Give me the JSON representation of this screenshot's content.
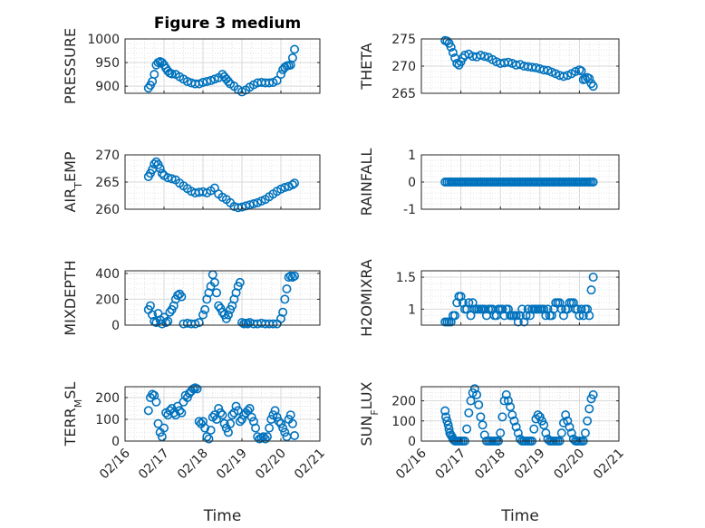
{
  "figure": {
    "title": "Figure 3 medium"
  },
  "chart_data": [
    {
      "type": "scatter",
      "ylabel": "PRESSURE",
      "ylim": [
        885,
        1000
      ],
      "yticks": [
        900,
        950,
        1000
      ],
      "xlabel": "",
      "xticklabels": [],
      "x": [
        16.6,
        16.65,
        16.7,
        16.75,
        16.8,
        16.85,
        16.9,
        16.95,
        17.0,
        17.05,
        17.1,
        17.15,
        17.2,
        17.3,
        17.4,
        17.5,
        17.6,
        17.7,
        17.8,
        17.9,
        18.0,
        18.1,
        18.2,
        18.3,
        18.4,
        18.5,
        18.55,
        18.6,
        18.65,
        18.7,
        18.8,
        18.9,
        19.0,
        19.1,
        19.2,
        19.3,
        19.4,
        19.5,
        19.6,
        19.7,
        19.8,
        19.9,
        20.0,
        20.05,
        20.1,
        20.15,
        20.2,
        20.25,
        20.3,
        20.35
      ],
      "y": [
        896,
        902,
        910,
        925,
        945,
        950,
        952,
        950,
        945,
        938,
        932,
        928,
        926,
        925,
        920,
        915,
        910,
        907,
        905,
        905,
        908,
        910,
        912,
        915,
        918,
        925,
        920,
        915,
        910,
        905,
        900,
        893,
        888,
        892,
        898,
        903,
        907,
        908,
        907,
        907,
        908,
        912,
        925,
        935,
        940,
        943,
        944,
        945,
        960,
        978
      ]
    },
    {
      "type": "scatter",
      "ylabel": "THETA",
      "ylim": [
        265,
        275
      ],
      "yticks": [
        265,
        270,
        275
      ],
      "xlabel": "",
      "xticklabels": [],
      "x": [
        16.6,
        16.65,
        16.7,
        16.75,
        16.8,
        16.85,
        16.9,
        16.95,
        17.0,
        17.05,
        17.1,
        17.2,
        17.3,
        17.4,
        17.5,
        17.6,
        17.7,
        17.8,
        17.9,
        18.0,
        18.1,
        18.2,
        18.3,
        18.4,
        18.5,
        18.6,
        18.7,
        18.8,
        18.9,
        19.0,
        19.1,
        19.2,
        19.3,
        19.4,
        19.5,
        19.6,
        19.7,
        19.8,
        19.9,
        20.0,
        20.05,
        20.1,
        20.15,
        20.2,
        20.25,
        20.3,
        20.35
      ],
      "y": [
        274.7,
        274.6,
        274.2,
        273.5,
        272.5,
        271.5,
        270.5,
        270.2,
        270.8,
        271.5,
        272,
        272.2,
        271.8,
        271.7,
        272,
        271.8,
        271.6,
        271.2,
        270.8,
        270.5,
        270.6,
        270.7,
        270.5,
        270.2,
        270.3,
        270,
        269.9,
        269.8,
        269.7,
        269.5,
        269.3,
        269.2,
        268.9,
        268.6,
        268.3,
        268.1,
        268.3,
        268.6,
        269,
        269.3,
        269.1,
        267.5,
        267.6,
        267.9,
        267.7,
        266.8,
        266.3
      ]
    },
    {
      "type": "scatter",
      "ylabel": "AIR_TEMP",
      "ylim": [
        260,
        270
      ],
      "yticks": [
        260,
        265,
        270
      ],
      "xlabel": "",
      "xticklabels": [],
      "x": [
        16.6,
        16.65,
        16.7,
        16.75,
        16.8,
        16.85,
        16.9,
        16.95,
        17.0,
        17.1,
        17.2,
        17.3,
        17.4,
        17.5,
        17.6,
        17.7,
        17.8,
        17.9,
        18.0,
        18.1,
        18.2,
        18.3,
        18.4,
        18.5,
        18.6,
        18.7,
        18.8,
        18.9,
        19.0,
        19.1,
        19.2,
        19.3,
        19.4,
        19.5,
        19.6,
        19.7,
        19.8,
        19.9,
        20.0,
        20.1,
        20.2,
        20.3,
        20.35
      ],
      "y": [
        266,
        266.6,
        267.3,
        268.3,
        268.7,
        268.2,
        267.5,
        266.6,
        266.2,
        265.8,
        265.6,
        265.4,
        264.8,
        264.3,
        263.8,
        263.3,
        263,
        263.1,
        263.2,
        263,
        263.4,
        263.9,
        262.8,
        262.2,
        261.8,
        261.2,
        260.5,
        260.3,
        260.4,
        260.6,
        260.8,
        261,
        261.2,
        261.5,
        261.8,
        262.3,
        262.8,
        263.3,
        263.7,
        264,
        264.2,
        264.5,
        264.8
      ]
    },
    {
      "type": "scatter",
      "ylabel": "RAINFALL",
      "ylim": [
        -1,
        1
      ],
      "yticks": [
        -1,
        0,
        1
      ],
      "xlabel": "",
      "xticklabels": [],
      "x": [
        16.6,
        16.65,
        16.7,
        16.75,
        16.8,
        16.85,
        16.9,
        16.95,
        17.0,
        17.05,
        17.1,
        17.15,
        17.2,
        17.25,
        17.3,
        17.35,
        17.4,
        17.45,
        17.5,
        17.55,
        17.6,
        17.65,
        17.7,
        17.75,
        17.8,
        17.85,
        17.9,
        17.95,
        18.0,
        18.05,
        18.1,
        18.15,
        18.2,
        18.25,
        18.3,
        18.35,
        18.4,
        18.45,
        18.5,
        18.55,
        18.6,
        18.65,
        18.7,
        18.75,
        18.8,
        18.85,
        18.9,
        18.95,
        19.0,
        19.05,
        19.1,
        19.15,
        19.2,
        19.25,
        19.3,
        19.35,
        19.4,
        19.45,
        19.5,
        19.55,
        19.6,
        19.65,
        19.7,
        19.75,
        19.8,
        19.85,
        19.9,
        19.95,
        20.0,
        20.05,
        20.1,
        20.15,
        20.2,
        20.25,
        20.3,
        20.35
      ],
      "y": [
        0,
        0,
        0,
        0,
        0,
        0,
        0,
        0,
        0,
        0,
        0,
        0,
        0,
        0,
        0,
        0,
        0,
        0,
        0,
        0,
        0,
        0,
        0,
        0,
        0,
        0,
        0,
        0,
        0,
        0,
        0,
        0,
        0,
        0,
        0,
        0,
        0,
        0,
        0,
        0,
        0,
        0,
        0,
        0,
        0,
        0,
        0,
        0,
        0,
        0,
        0,
        0,
        0,
        0,
        0,
        0,
        0,
        0,
        0,
        0,
        0,
        0,
        0,
        0,
        0,
        0,
        0,
        0,
        0,
        0,
        0,
        0,
        0,
        0,
        0,
        0
      ]
    },
    {
      "type": "scatter",
      "ylabel": "MIXDEPTH",
      "ylim": [
        0,
        420
      ],
      "yticks": [
        0,
        200,
        400
      ],
      "xlabel": "",
      "xticklabels": [],
      "x": [
        16.6,
        16.65,
        16.7,
        16.75,
        16.8,
        16.85,
        16.9,
        16.95,
        17.0,
        17.05,
        17.1,
        17.15,
        17.2,
        17.25,
        17.3,
        17.35,
        17.4,
        17.45,
        17.5,
        17.6,
        17.7,
        17.8,
        17.9,
        18.0,
        18.05,
        18.1,
        18.15,
        18.2,
        18.25,
        18.3,
        18.35,
        18.4,
        18.45,
        18.5,
        18.55,
        18.6,
        18.65,
        18.7,
        18.75,
        18.8,
        18.85,
        18.9,
        18.95,
        19.0,
        19.05,
        19.1,
        19.15,
        19.2,
        19.3,
        19.4,
        19.5,
        19.6,
        19.7,
        19.8,
        19.9,
        20.0,
        20.05,
        20.1,
        20.15,
        20.2,
        20.25,
        20.3,
        20.35
      ],
      "y": [
        120,
        150,
        80,
        30,
        20,
        90,
        40,
        10,
        60,
        20,
        30,
        100,
        120,
        150,
        200,
        230,
        240,
        220,
        10,
        15,
        10,
        10,
        20,
        80,
        120,
        200,
        250,
        300,
        390,
        330,
        250,
        150,
        130,
        100,
        80,
        50,
        80,
        120,
        150,
        200,
        250,
        300,
        330,
        20,
        10,
        15,
        10,
        20,
        10,
        10,
        15,
        10,
        10,
        10,
        10,
        50,
        100,
        200,
        280,
        370,
        380,
        370,
        380
      ]
    },
    {
      "type": "scatter",
      "ylabel": "H2OMIXRA",
      "ylim": [
        0.75,
        1.6
      ],
      "yticks": [
        1,
        1.5
      ],
      "xlabel": "",
      "xticklabels": [],
      "x": [
        16.6,
        16.65,
        16.7,
        16.75,
        16.8,
        16.85,
        16.9,
        16.95,
        17.0,
        17.05,
        17.1,
        17.15,
        17.2,
        17.25,
        17.3,
        17.35,
        17.4,
        17.45,
        17.5,
        17.55,
        17.6,
        17.65,
        17.7,
        17.75,
        17.8,
        17.85,
        17.9,
        17.95,
        18.0,
        18.05,
        18.1,
        18.15,
        18.2,
        18.25,
        18.3,
        18.35,
        18.4,
        18.45,
        18.5,
        18.55,
        18.6,
        18.65,
        18.7,
        18.75,
        18.8,
        18.85,
        18.9,
        18.95,
        19.0,
        19.05,
        19.1,
        19.15,
        19.2,
        19.25,
        19.3,
        19.35,
        19.4,
        19.45,
        19.5,
        19.55,
        19.6,
        19.65,
        19.7,
        19.75,
        19.8,
        19.85,
        19.9,
        19.95,
        20.0,
        20.05,
        20.1,
        20.15,
        20.2,
        20.25,
        20.3,
        20.35
      ],
      "y": [
        0.8,
        0.8,
        0.8,
        0.8,
        0.9,
        0.9,
        1.1,
        1.2,
        1.2,
        1.1,
        1.0,
        1.0,
        1.1,
        0.9,
        1.1,
        1.0,
        1.0,
        1.0,
        1.0,
        1.0,
        1.0,
        0.9,
        1.0,
        1.0,
        1.0,
        0.9,
        0.9,
        1.0,
        1.0,
        1.0,
        0.9,
        1.0,
        1.0,
        0.9,
        0.9,
        0.9,
        0.9,
        0.8,
        0.9,
        1.0,
        0.8,
        0.9,
        1.0,
        0.9,
        1.0,
        1.0,
        1.0,
        1.0,
        1.0,
        1.0,
        1.0,
        0.9,
        1.0,
        0.9,
        0.9,
        1.0,
        1.1,
        1.1,
        1.1,
        1.0,
        0.9,
        1.0,
        1.0,
        1.1,
        1.1,
        1.1,
        1.0,
        1.0,
        0.9,
        1.0,
        0.9,
        1.0,
        1.0,
        0.9,
        1.3,
        1.5
      ]
    },
    {
      "type": "scatter",
      "ylabel": "TERR_MSL",
      "ylim": [
        0,
        250
      ],
      "yticks": [
        0,
        100,
        200
      ],
      "xlabel": "Time",
      "xticklabels": [
        "02/16",
        "02/17",
        "02/18",
        "02/19",
        "02/20",
        "02/21"
      ],
      "x": [
        16.6,
        16.65,
        16.7,
        16.75,
        16.8,
        16.85,
        16.9,
        16.95,
        17.0,
        17.05,
        17.1,
        17.15,
        17.2,
        17.25,
        17.3,
        17.35,
        17.4,
        17.45,
        17.5,
        17.55,
        17.6,
        17.65,
        17.7,
        17.75,
        17.8,
        17.85,
        17.9,
        17.95,
        18.0,
        18.05,
        18.1,
        18.15,
        18.2,
        18.25,
        18.3,
        18.35,
        18.4,
        18.45,
        18.5,
        18.55,
        18.6,
        18.65,
        18.7,
        18.75,
        18.8,
        18.85,
        18.9,
        18.95,
        19.0,
        19.05,
        19.1,
        19.15,
        19.2,
        19.25,
        19.3,
        19.35,
        19.4,
        19.45,
        19.5,
        19.55,
        19.6,
        19.65,
        19.7,
        19.75,
        19.8,
        19.85,
        19.9,
        19.95,
        20.0,
        20.05,
        20.1,
        20.15,
        20.2,
        20.25,
        20.3,
        20.35
      ],
      "y": [
        140,
        200,
        215,
        210,
        180,
        80,
        40,
        20,
        60,
        130,
        120,
        140,
        150,
        130,
        120,
        160,
        140,
        130,
        180,
        210,
        200,
        220,
        230,
        240,
        245,
        240,
        90,
        80,
        90,
        60,
        20,
        10,
        50,
        110,
        120,
        100,
        150,
        130,
        120,
        80,
        60,
        40,
        80,
        120,
        130,
        160,
        140,
        90,
        100,
        120,
        130,
        140,
        150,
        110,
        90,
        60,
        20,
        10,
        15,
        20,
        10,
        20,
        60,
        100,
        120,
        140,
        110,
        90,
        80,
        60,
        40,
        20,
        100,
        120,
        80,
        25
      ]
    },
    {
      "type": "scatter",
      "ylabel": "SUN_FLUX",
      "ylim": [
        0,
        270
      ],
      "yticks": [
        0,
        100,
        200
      ],
      "xlabel": "Time",
      "xticklabels": [
        "02/16",
        "02/17",
        "02/18",
        "02/19",
        "02/20",
        "02/21"
      ],
      "x": [
        16.6,
        16.62,
        16.65,
        16.68,
        16.7,
        16.72,
        16.75,
        16.78,
        16.8,
        16.82,
        16.85,
        16.88,
        16.9,
        16.95,
        17.0,
        17.05,
        17.1,
        17.15,
        17.2,
        17.25,
        17.3,
        17.35,
        17.4,
        17.45,
        17.5,
        17.55,
        17.6,
        17.65,
        17.7,
        17.75,
        17.8,
        17.85,
        17.9,
        17.95,
        18.0,
        18.05,
        18.1,
        18.15,
        18.2,
        18.25,
        18.3,
        18.35,
        18.4,
        18.45,
        18.5,
        18.55,
        18.6,
        18.65,
        18.7,
        18.75,
        18.8,
        18.85,
        18.9,
        18.95,
        19.0,
        19.05,
        19.1,
        19.15,
        19.2,
        19.25,
        19.3,
        19.35,
        19.4,
        19.45,
        19.5,
        19.55,
        19.6,
        19.65,
        19.7,
        19.75,
        19.8,
        19.85,
        19.9,
        19.95,
        20.0,
        20.05,
        20.1,
        20.15,
        20.2,
        20.25,
        20.3,
        20.35
      ],
      "y": [
        150,
        120,
        100,
        80,
        60,
        40,
        30,
        20,
        10,
        5,
        0,
        0,
        0,
        0,
        0,
        0,
        0,
        60,
        140,
        200,
        240,
        260,
        230,
        180,
        120,
        80,
        30,
        0,
        0,
        0,
        0,
        0,
        0,
        0,
        40,
        120,
        200,
        230,
        200,
        170,
        130,
        100,
        70,
        40,
        10,
        0,
        0,
        0,
        0,
        0,
        0,
        60,
        110,
        130,
        120,
        100,
        80,
        40,
        10,
        0,
        0,
        0,
        0,
        0,
        0,
        40,
        90,
        130,
        100,
        70,
        40,
        10,
        0,
        0,
        0,
        0,
        0,
        40,
        100,
        160,
        210,
        230
      ]
    }
  ]
}
